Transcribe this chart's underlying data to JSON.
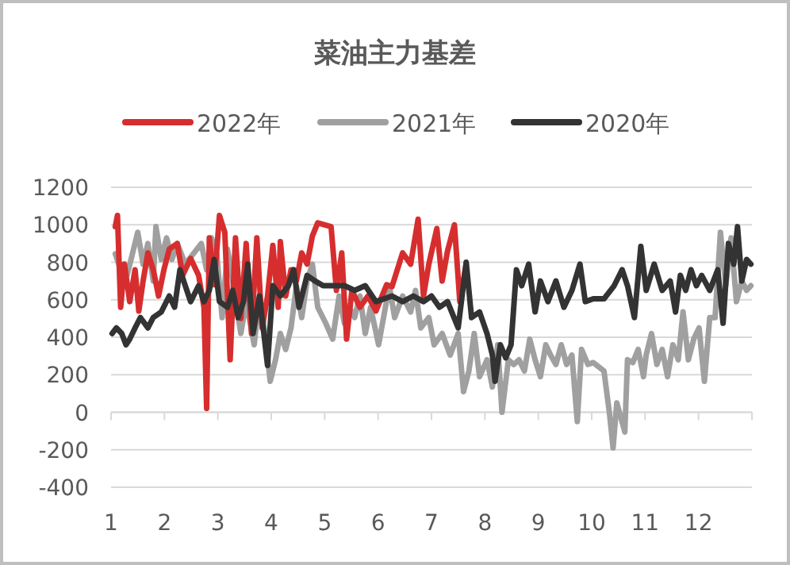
{
  "chart_data": {
    "type": "line",
    "title": "菜油主力基差",
    "legend": "top",
    "grid": "y",
    "xlim": [
      1,
      13
    ],
    "ylim": [
      -400,
      1200
    ],
    "xticks": [
      1,
      2,
      3,
      4,
      5,
      6,
      7,
      8,
      9,
      10,
      11,
      12,
      {
        "value": 13,
        "label": null
      }
    ],
    "yticks": [
      -400,
      -200,
      0,
      200,
      400,
      600,
      800,
      1000,
      1200
    ],
    "series": [
      {
        "name": "2022年",
        "color": "#d62e2e",
        "x": [
          1.08,
          1.12,
          1.18,
          1.25,
          1.35,
          1.45,
          1.52,
          1.6,
          1.69,
          1.79,
          1.89,
          1.99,
          2.09,
          2.24,
          2.34,
          2.49,
          2.64,
          2.74,
          2.79,
          2.84,
          2.93,
          3.03,
          3.13,
          3.23,
          3.33,
          3.43,
          3.53,
          3.63,
          3.73,
          3.83,
          3.93,
          4.03,
          4.13,
          4.17,
          4.27,
          4.37,
          4.47,
          4.57,
          4.67,
          4.77,
          4.87,
          5.12,
          5.22,
          5.32,
          5.41,
          5.51,
          5.66,
          5.81,
          5.96,
          6.16,
          6.26,
          6.46,
          6.61,
          6.75,
          6.85,
          6.95,
          7.1,
          7.2,
          7.3,
          7.43,
          7.53,
          7.65
        ],
        "values": [
          990,
          1050,
          560,
          790,
          590,
          760,
          540,
          700,
          850,
          760,
          620,
          760,
          870,
          900,
          730,
          820,
          730,
          560,
          20,
          930,
          680,
          1050,
          960,
          280,
          930,
          500,
          900,
          420,
          930,
          450,
          620,
          890,
          560,
          910,
          620,
          760,
          700,
          850,
          790,
          940,
          1010,
          990,
          650,
          850,
          390,
          650,
          560,
          620,
          540,
          680,
          670,
          850,
          790,
          1030,
          620,
          790,
          980,
          700,
          860,
          1000,
          590,
          790
        ]
      },
      {
        "name": "2021年",
        "color": "#a0a0a0",
        "x": [
          1.08,
          1.18,
          1.3,
          1.4,
          1.5,
          1.6,
          1.69,
          1.79,
          1.84,
          1.94,
          2.04,
          2.14,
          2.24,
          2.39,
          2.54,
          2.69,
          2.79,
          2.88,
          2.98,
          3.08,
          3.18,
          3.28,
          3.43,
          3.53,
          3.68,
          3.78,
          3.88,
          3.98,
          4.08,
          4.17,
          4.27,
          4.37,
          4.47,
          4.57,
          4.67,
          4.77,
          4.87,
          5.02,
          5.15,
          5.27,
          5.37,
          5.46,
          5.56,
          5.66,
          5.76,
          5.86,
          6.01,
          6.21,
          6.31,
          6.46,
          6.61,
          6.7,
          6.8,
          6.95,
          7.05,
          7.2,
          7.35,
          7.5,
          7.6,
          7.7,
          7.8,
          7.9,
          8.04,
          8.14,
          8.24,
          8.32,
          8.44,
          8.54,
          8.64,
          8.74,
          8.84,
          8.94,
          9.04,
          9.14,
          9.23,
          9.33,
          9.43,
          9.53,
          9.63,
          9.73,
          9.81,
          9.93,
          10.03,
          10.23,
          10.33,
          10.4,
          10.47,
          10.62,
          10.67,
          10.77,
          10.87,
          10.97,
          11.02,
          11.12,
          11.22,
          11.32,
          11.42,
          11.52,
          11.62,
          11.71,
          11.81,
          11.91,
          12.01,
          12.11,
          12.21,
          12.31,
          12.41,
          12.51,
          12.61,
          12.71,
          12.81,
          12.9,
          12.98
        ],
        "values": [
          845,
          760,
          730,
          845,
          960,
          790,
          900,
          700,
          990,
          815,
          930,
          815,
          900,
          790,
          845,
          900,
          760,
          930,
          845,
          505,
          870,
          700,
          420,
          590,
          360,
          620,
          420,
          165,
          280,
          420,
          335,
          450,
          675,
          505,
          700,
          790,
          560,
          475,
          390,
          620,
          475,
          560,
          505,
          620,
          420,
          560,
          360,
          675,
          505,
          620,
          535,
          650,
          450,
          505,
          360,
          420,
          305,
          420,
          110,
          220,
          420,
          190,
          280,
          135,
          360,
          0,
          280,
          255,
          280,
          220,
          390,
          280,
          190,
          360,
          305,
          255,
          360,
          255,
          305,
          -50,
          335,
          255,
          265,
          220,
          0,
          -190,
          50,
          -105,
          280,
          265,
          335,
          190,
          305,
          420,
          255,
          335,
          190,
          360,
          280,
          535,
          280,
          390,
          450,
          165,
          505,
          505,
          960,
          675,
          930,
          590,
          700,
          650,
          675
        ]
      },
      {
        "name": "2020年",
        "color": "#333333",
        "x": [
          1.02,
          1.1,
          1.2,
          1.28,
          1.35,
          1.45,
          1.55,
          1.69,
          1.79,
          1.94,
          2.09,
          2.19,
          2.29,
          2.39,
          2.49,
          2.64,
          2.74,
          2.84,
          2.93,
          3.03,
          3.18,
          3.28,
          3.38,
          3.48,
          3.56,
          3.66,
          3.78,
          3.93,
          4.03,
          4.17,
          4.32,
          4.42,
          4.52,
          4.67,
          4.82,
          4.97,
          5.17,
          5.37,
          5.56,
          5.76,
          5.96,
          6.26,
          6.46,
          6.66,
          6.85,
          7.0,
          7.15,
          7.3,
          7.5,
          7.65,
          7.75,
          7.9,
          8.04,
          8.14,
          8.19,
          8.29,
          8.39,
          8.49,
          8.59,
          8.69,
          8.82,
          8.94,
          9.04,
          9.18,
          9.33,
          9.48,
          9.63,
          9.78,
          9.88,
          10.03,
          10.23,
          10.42,
          10.57,
          10.67,
          10.8,
          10.92,
          11.02,
          11.17,
          11.32,
          11.47,
          11.57,
          11.66,
          11.76,
          11.86,
          11.96,
          12.06,
          12.21,
          12.36,
          12.46,
          12.56,
          12.66,
          12.73,
          12.81,
          12.9,
          12.98
        ],
        "values": [
          420,
          450,
          420,
          360,
          390,
          450,
          505,
          450,
          505,
          535,
          620,
          560,
          760,
          675,
          590,
          675,
          590,
          650,
          815,
          590,
          560,
          650,
          505,
          590,
          790,
          420,
          620,
          250,
          675,
          620,
          675,
          760,
          560,
          730,
          700,
          675,
          675,
          675,
          650,
          675,
          590,
          620,
          590,
          620,
          590,
          620,
          560,
          590,
          450,
          800,
          505,
          535,
          420,
          305,
          165,
          360,
          290,
          360,
          760,
          675,
          790,
          535,
          700,
          590,
          700,
          560,
          650,
          790,
          590,
          605,
          605,
          675,
          760,
          675,
          505,
          885,
          650,
          790,
          650,
          700,
          535,
          730,
          650,
          760,
          675,
          730,
          650,
          760,
          475,
          900,
          790,
          990,
          700,
          815,
          790
        ]
      }
    ]
  }
}
